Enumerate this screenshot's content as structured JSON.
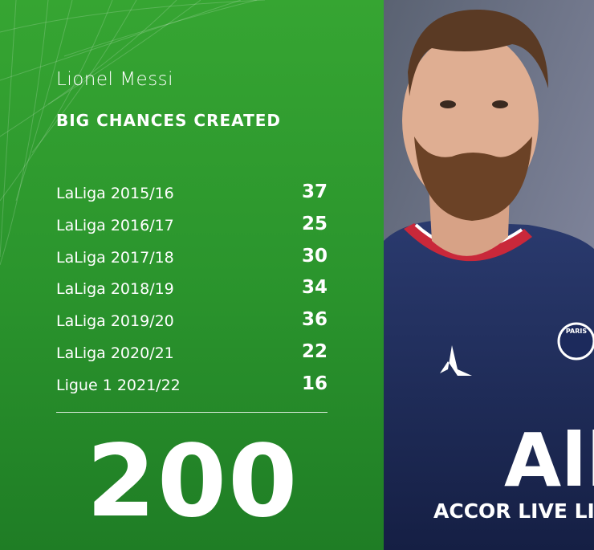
{
  "name": "Lionel Messi",
  "title": "BIG CHANCES CREATED",
  "rows": [
    {
      "label": "LaLiga 2015/16",
      "value": 37
    },
    {
      "label": "LaLiga 2016/17",
      "value": 25
    },
    {
      "label": "LaLiga 2017/18",
      "value": 30
    },
    {
      "label": "LaLiga 2018/19",
      "value": 34
    },
    {
      "label": "LaLiga 2019/20",
      "value": 36
    },
    {
      "label": "LaLiga 2020/21",
      "value": 22
    },
    {
      "label": "Ligue 1 2021/22",
      "value": 16
    }
  ],
  "total": 200,
  "photo": {
    "crest": "PARIS",
    "sponsor_mark": "All",
    "sponsor": "ACCOR LIVE LIM"
  }
}
